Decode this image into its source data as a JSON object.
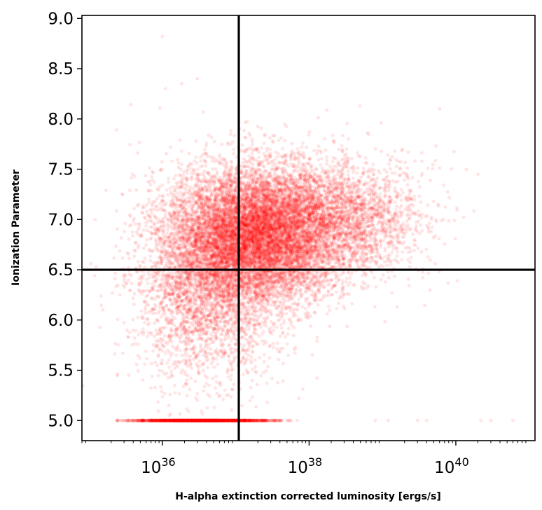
{
  "chart_data": {
    "type": "scatter",
    "title": "",
    "xlabel": "H-alpha extinction corrected luminosity [ergs/s]",
    "ylabel": "Ionization Parameter",
    "x_scale": "log",
    "xlim": [
      8e+34,
      1.2e+41
    ],
    "ylim": [
      4.8,
      9.03
    ],
    "x_ticks": [
      {
        "value": 1e+36,
        "base": "10",
        "exp": "36"
      },
      {
        "value": 1e+38,
        "base": "10",
        "exp": "38"
      },
      {
        "value": 1e+40,
        "base": "10",
        "exp": "40"
      }
    ],
    "y_ticks": [
      {
        "value": 5.0,
        "label": "5.0"
      },
      {
        "value": 5.5,
        "label": "5.5"
      },
      {
        "value": 6.0,
        "label": "6.0"
      },
      {
        "value": 6.5,
        "label": "6.5"
      },
      {
        "value": 7.0,
        "label": "7.0"
      },
      {
        "value": 7.5,
        "label": "7.5"
      },
      {
        "value": 8.0,
        "label": "8.0"
      },
      {
        "value": 8.5,
        "label": "8.5"
      },
      {
        "value": 9.0,
        "label": "9.0"
      }
    ],
    "reference_lines": {
      "vertical_x": 1.1e+37,
      "horizontal_y": 6.5
    },
    "grid": false,
    "legend": "none",
    "point_color": "#ff0000",
    "point_alpha": 0.1,
    "series": [
      {
        "clusters": [
          {
            "x_log10_center": 37.3,
            "x_log10_sd": 0.55,
            "y_center": 6.85,
            "y_sd": 0.33,
            "count": 9000
          },
          {
            "x_log10_center": 36.6,
            "x_log10_sd": 0.5,
            "y_center": 6.4,
            "y_sd": 0.5,
            "count": 3500
          },
          {
            "x_log10_center": 38.4,
            "x_log10_sd": 0.55,
            "y_center": 7.0,
            "y_sd": 0.3,
            "count": 2500
          }
        ],
        "floor_band": {
          "y": 5.0,
          "x_log10_range": [
            35.2,
            37.9
          ],
          "count": 1600
        },
        "outliers": [
          {
            "x": 1e+36,
            "y": 8.82
          },
          {
            "x": 3e+36,
            "y": 8.4
          },
          {
            "x": 1.1e+36,
            "y": 8.3
          },
          {
            "x": 6e+39,
            "y": 8.1
          },
          {
            "x": 3e+39,
            "y": 5.0
          },
          {
            "x": 4e+39,
            "y": 5.0
          },
          {
            "x": 2.2e+40,
            "y": 5.0
          },
          {
            "x": 3e+40,
            "y": 5.0
          },
          {
            "x": 6e+40,
            "y": 5.0
          },
          {
            "x": 8e+38,
            "y": 5.0
          },
          {
            "x": 1.2e+39,
            "y": 5.0
          },
          {
            "x": 2e+40,
            "y": 7.45
          }
        ]
      }
    ]
  }
}
